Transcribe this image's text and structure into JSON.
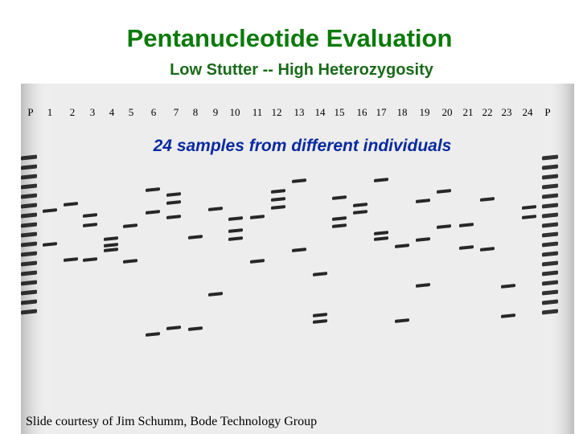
{
  "title": "Pentanucleotide Evaluation",
  "subtitle": "Low Stutter -- High Heterozygosity",
  "caption": "24 samples from different individuals",
  "credit": "Slide courtesy of Jim Schumm, Bode Technology Group",
  "lane_labels": [
    "P",
    "1",
    "2",
    "3",
    "4",
    "5",
    "6",
    "7",
    "8",
    "9",
    "10",
    "11",
    "12",
    "13",
    "14",
    "15",
    "16",
    "17",
    "18",
    "19",
    "20",
    "21",
    "22",
    "23",
    "24",
    "P"
  ],
  "colors": {
    "title": "#0a7a0a",
    "caption": "#0a2aa0",
    "band": "#111111"
  }
}
